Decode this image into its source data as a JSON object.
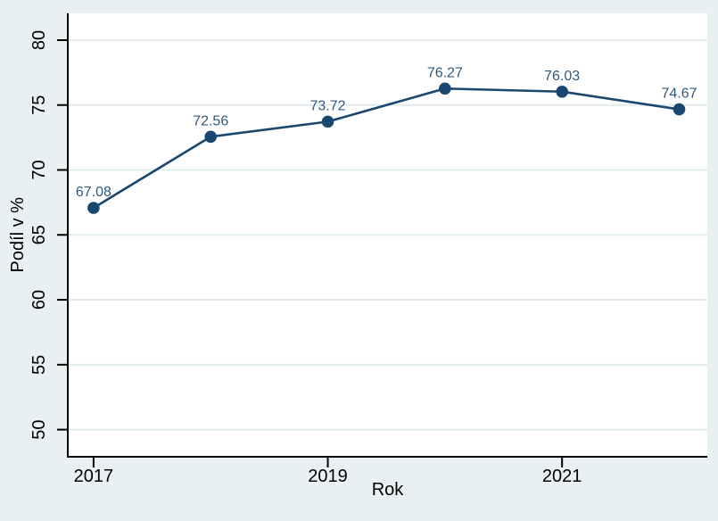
{
  "chart_data": {
    "type": "line",
    "x": [
      2017,
      2018,
      2019,
      2020,
      2021,
      2022
    ],
    "series": [
      {
        "name": "Podíl",
        "values": [
          67.08,
          72.56,
          73.72,
          76.27,
          76.03,
          74.67
        ],
        "point_labels": [
          "67.08",
          "72.56",
          "73.72",
          "76.27",
          "76.03",
          "74.67"
        ]
      }
    ],
    "title": "",
    "xlabel": "Rok",
    "ylabel": "Podíl v %",
    "xticks": [
      2017,
      2019,
      2021
    ],
    "xtick_labels": [
      "2017",
      "2019",
      "2021"
    ],
    "yticks": [
      50,
      55,
      60,
      65,
      70,
      75,
      80
    ],
    "ytick_labels": [
      "50",
      "55",
      "60",
      "65",
      "70",
      "75",
      "80"
    ],
    "xlim": [
      2016.78,
      2022.24
    ],
    "ylim": [
      47.91,
      82.06
    ],
    "grid": true,
    "grid_axis": "y",
    "legend": "none",
    "colors": {
      "canvas_background": "#e9f0f2",
      "plot_background": "#ffffff",
      "gridline": "#e2ecee",
      "axis_line": "#000000",
      "tick_text": "#000000",
      "series_line": "#1a476f",
      "marker_fill": "#1a476f",
      "point_label_text": "#31597f"
    }
  }
}
